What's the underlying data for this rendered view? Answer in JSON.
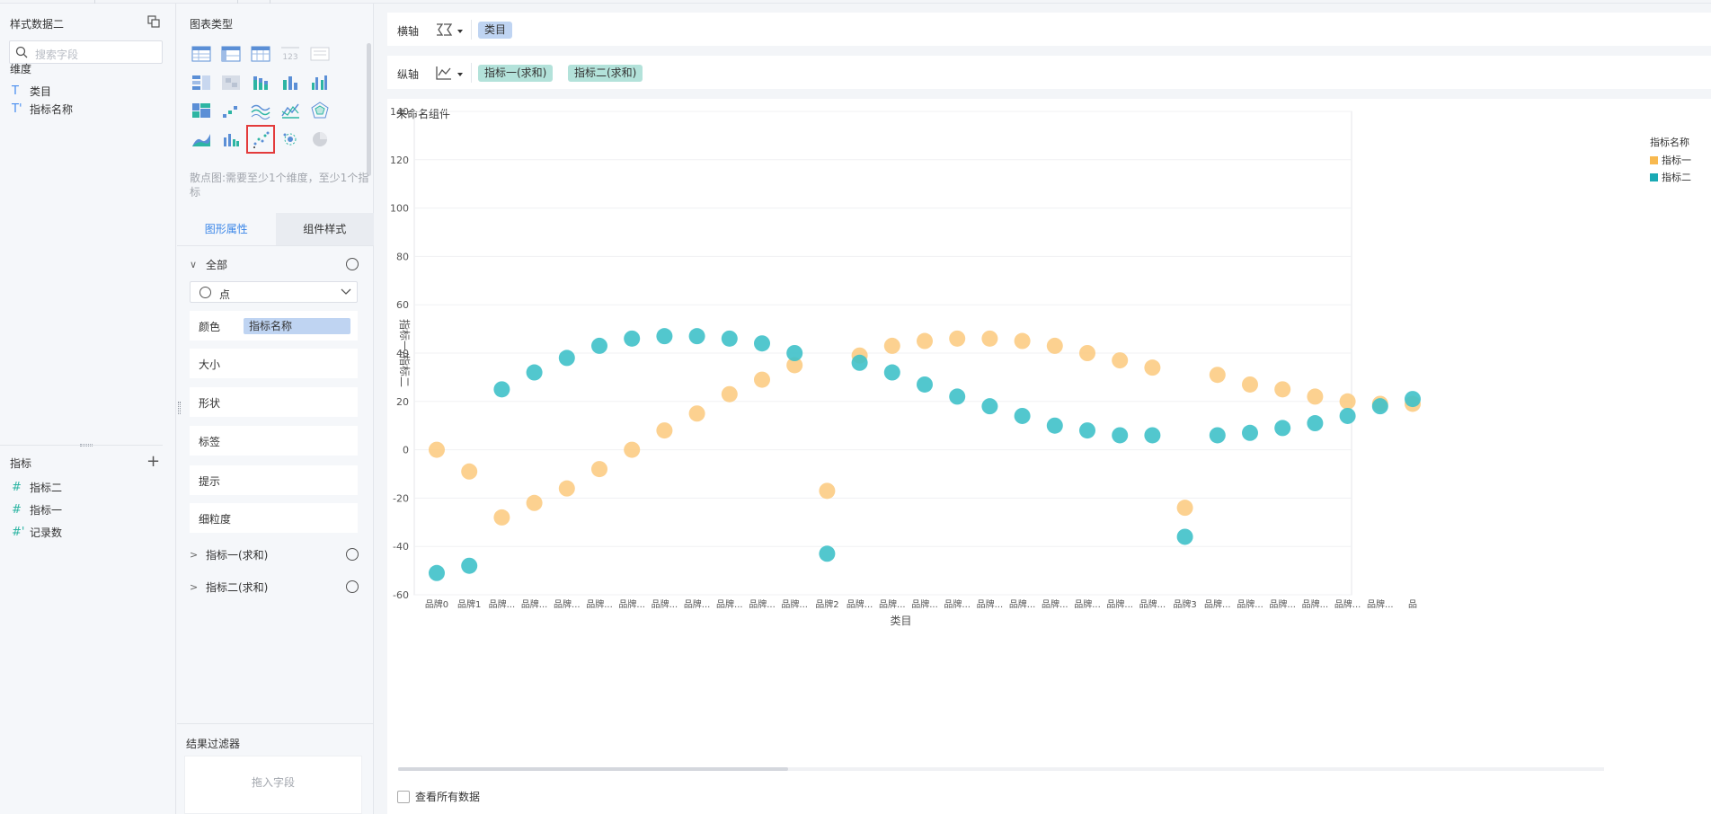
{
  "data_panel": {
    "title": "样式数据二",
    "search_placeholder": "搜索字段",
    "dimensions_label": "维度",
    "dimensions": [
      {
        "icon": "T",
        "label": "类目"
      },
      {
        "icon": "T'",
        "label": "指标名称"
      }
    ],
    "measures_label": "指标",
    "measures": [
      {
        "icon": "#",
        "label": "指标二"
      },
      {
        "icon": "#",
        "label": "指标一"
      },
      {
        "icon": "#'",
        "label": "记录数"
      }
    ]
  },
  "config_panel": {
    "chart_types_label": "图表类型",
    "hint": "散点图:需要至少1个维度，至少1个指标",
    "tabs": [
      "图形属性",
      "组件样式"
    ],
    "group_all": "全部",
    "mark_type": "点",
    "props": {
      "color_label": "颜色",
      "color_field": "指标名称",
      "size": "大小",
      "shape": "形状",
      "label": "标签",
      "tooltip": "提示",
      "granularity": "细粒度"
    },
    "measure_groups": [
      "指标一(求和)",
      "指标二(求和)"
    ],
    "filter_title": "结果过滤器",
    "filter_placeholder": "拖入字段"
  },
  "axes": {
    "x_label": "横轴",
    "x_fields": [
      "类目"
    ],
    "y_label": "纵轴",
    "y_fields": [
      "指标一(求和)",
      "指标二(求和)"
    ]
  },
  "widget": {
    "title": "未命名组件",
    "show_all": "查看所有数据"
  },
  "colors": {
    "series1": "#fcc97d",
    "series2": "#3fc1c9",
    "accent": "#3a86e8",
    "dim_chip": "#bfd4f2",
    "measure_chip": "#b3e2da"
  },
  "chart_data": {
    "type": "scatter",
    "xlabel": "类目",
    "ylabel": "指标一/指标二",
    "ylim": [
      -60,
      140
    ],
    "yticks": [
      140,
      120,
      100,
      80,
      60,
      40,
      20,
      0,
      -20,
      -40,
      -60
    ],
    "legend_title": "指标名称",
    "legend_position": "top-right",
    "categories": [
      "品牌0",
      "品牌1",
      "品牌...",
      "品牌...",
      "品牌...",
      "品牌...",
      "品牌...",
      "品牌...",
      "品牌...",
      "品牌...",
      "品牌...",
      "品牌...",
      "品牌2",
      "品牌...",
      "品牌...",
      "品牌...",
      "品牌...",
      "品牌...",
      "品牌...",
      "品牌...",
      "品牌...",
      "品牌...",
      "品牌...",
      "品牌3",
      "品牌...",
      "品牌...",
      "品牌...",
      "品牌...",
      "品牌...",
      "品牌...",
      "品"
    ],
    "series": [
      {
        "name": "指标一",
        "values": [
          0,
          -9,
          -28,
          -22,
          -16,
          -8,
          0,
          8,
          15,
          23,
          29,
          35,
          -17,
          39,
          43,
          45,
          46,
          46,
          45,
          43,
          40,
          37,
          34,
          -24,
          31,
          27,
          25,
          22,
          20,
          19,
          19
        ]
      },
      {
        "name": "指标二",
        "values": [
          -51,
          -48,
          25,
          32,
          38,
          43,
          46,
          47,
          47,
          46,
          44,
          40,
          -43,
          36,
          32,
          27,
          22,
          18,
          14,
          10,
          8,
          6,
          6,
          -36,
          6,
          7,
          9,
          11,
          14,
          18,
          21
        ]
      }
    ]
  }
}
